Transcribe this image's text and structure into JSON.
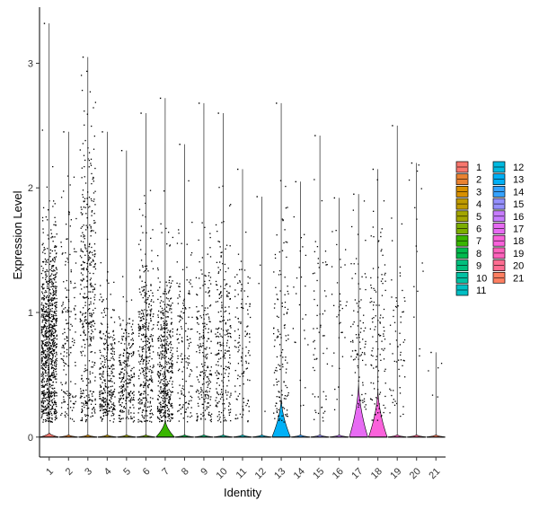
{
  "chart_data": {
    "type": "violin",
    "xlabel": "Identity",
    "ylabel": "Expression Level",
    "categories": [
      "1",
      "2",
      "3",
      "4",
      "5",
      "6",
      "7",
      "8",
      "9",
      "10",
      "11",
      "12",
      "13",
      "14",
      "15",
      "16",
      "17",
      "18",
      "19",
      "20",
      "21"
    ],
    "ylim": [
      -0.16,
      3.45
    ],
    "yticks": [
      0,
      1,
      2,
      3
    ],
    "grid": false,
    "legend_position": "right",
    "colors": [
      "#F8766D",
      "#EA8331",
      "#D89000",
      "#C09B00",
      "#A3A500",
      "#7CAE00",
      "#39B600",
      "#00BB4E",
      "#00BF7D",
      "#00C1A3",
      "#00BFC4",
      "#00BAE0",
      "#00B0F6",
      "#35A2FF",
      "#9590FF",
      "#C77CFF",
      "#E76BF3",
      "#FA62DB",
      "#FF62BC",
      "#FF6C91",
      "#FF7F61"
    ],
    "series": [
      {
        "name": "1",
        "max": 3.32,
        "violin_peak": 0.02,
        "points": 900,
        "mean": 0.75,
        "sd": 0.45
      },
      {
        "name": "2",
        "max": 2.45,
        "violin_peak": 0.01,
        "points": 170,
        "mean": 0.8,
        "sd": 0.55
      },
      {
        "name": "3",
        "max": 3.05,
        "violin_peak": 0.01,
        "points": 400,
        "mean": 1.1,
        "sd": 0.7
      },
      {
        "name": "4",
        "max": 2.45,
        "violin_peak": 0.01,
        "points": 300,
        "mean": 0.45,
        "sd": 0.35
      },
      {
        "name": "5",
        "max": 2.3,
        "violin_peak": 0.01,
        "points": 250,
        "mean": 0.45,
        "sd": 0.3
      },
      {
        "name": "6",
        "max": 2.6,
        "violin_peak": 0.01,
        "points": 350,
        "mean": 0.7,
        "sd": 0.45
      },
      {
        "name": "7",
        "max": 2.72,
        "violin_peak": 0.08,
        "points": 450,
        "mean": 0.55,
        "sd": 0.4
      },
      {
        "name": "8",
        "max": 2.35,
        "violin_peak": 0.01,
        "points": 150,
        "mean": 0.7,
        "sd": 0.5
      },
      {
        "name": "9",
        "max": 2.68,
        "violin_peak": 0.01,
        "points": 220,
        "mean": 0.65,
        "sd": 0.45
      },
      {
        "name": "10",
        "max": 2.6,
        "violin_peak": 0.01,
        "points": 230,
        "mean": 0.8,
        "sd": 0.5
      },
      {
        "name": "11",
        "max": 2.15,
        "violin_peak": 0.01,
        "points": 120,
        "mean": 0.7,
        "sd": 0.4
      },
      {
        "name": "12",
        "max": 1.93,
        "violin_peak": 0.01,
        "points": 3,
        "mean": 1.0,
        "sd": 0.5
      },
      {
        "name": "13",
        "max": 2.68,
        "violin_peak": 0.18,
        "points": 130,
        "mean": 0.7,
        "sd": 0.5
      },
      {
        "name": "14",
        "max": 2.05,
        "violin_peak": 0.01,
        "points": 25,
        "mean": 1.0,
        "sd": 0.5
      },
      {
        "name": "15",
        "max": 2.42,
        "violin_peak": 0.01,
        "points": 60,
        "mean": 0.9,
        "sd": 0.6
      },
      {
        "name": "16",
        "max": 1.92,
        "violin_peak": 0.01,
        "points": 35,
        "mean": 0.9,
        "sd": 0.5
      },
      {
        "name": "17",
        "max": 1.95,
        "violin_peak": 0.25,
        "points": 90,
        "mean": 0.8,
        "sd": 0.45
      },
      {
        "name": "18",
        "max": 2.15,
        "violin_peak": 0.22,
        "points": 120,
        "mean": 0.75,
        "sd": 0.45
      },
      {
        "name": "19",
        "max": 2.5,
        "violin_peak": 0.01,
        "points": 60,
        "mean": 0.7,
        "sd": 0.45
      },
      {
        "name": "20",
        "max": 2.2,
        "violin_peak": 0.01,
        "points": 15,
        "mean": 1.2,
        "sd": 0.5
      },
      {
        "name": "21",
        "max": 0.68,
        "violin_peak": 0.01,
        "points": 5,
        "mean": 0.5,
        "sd": 0.15
      }
    ]
  }
}
